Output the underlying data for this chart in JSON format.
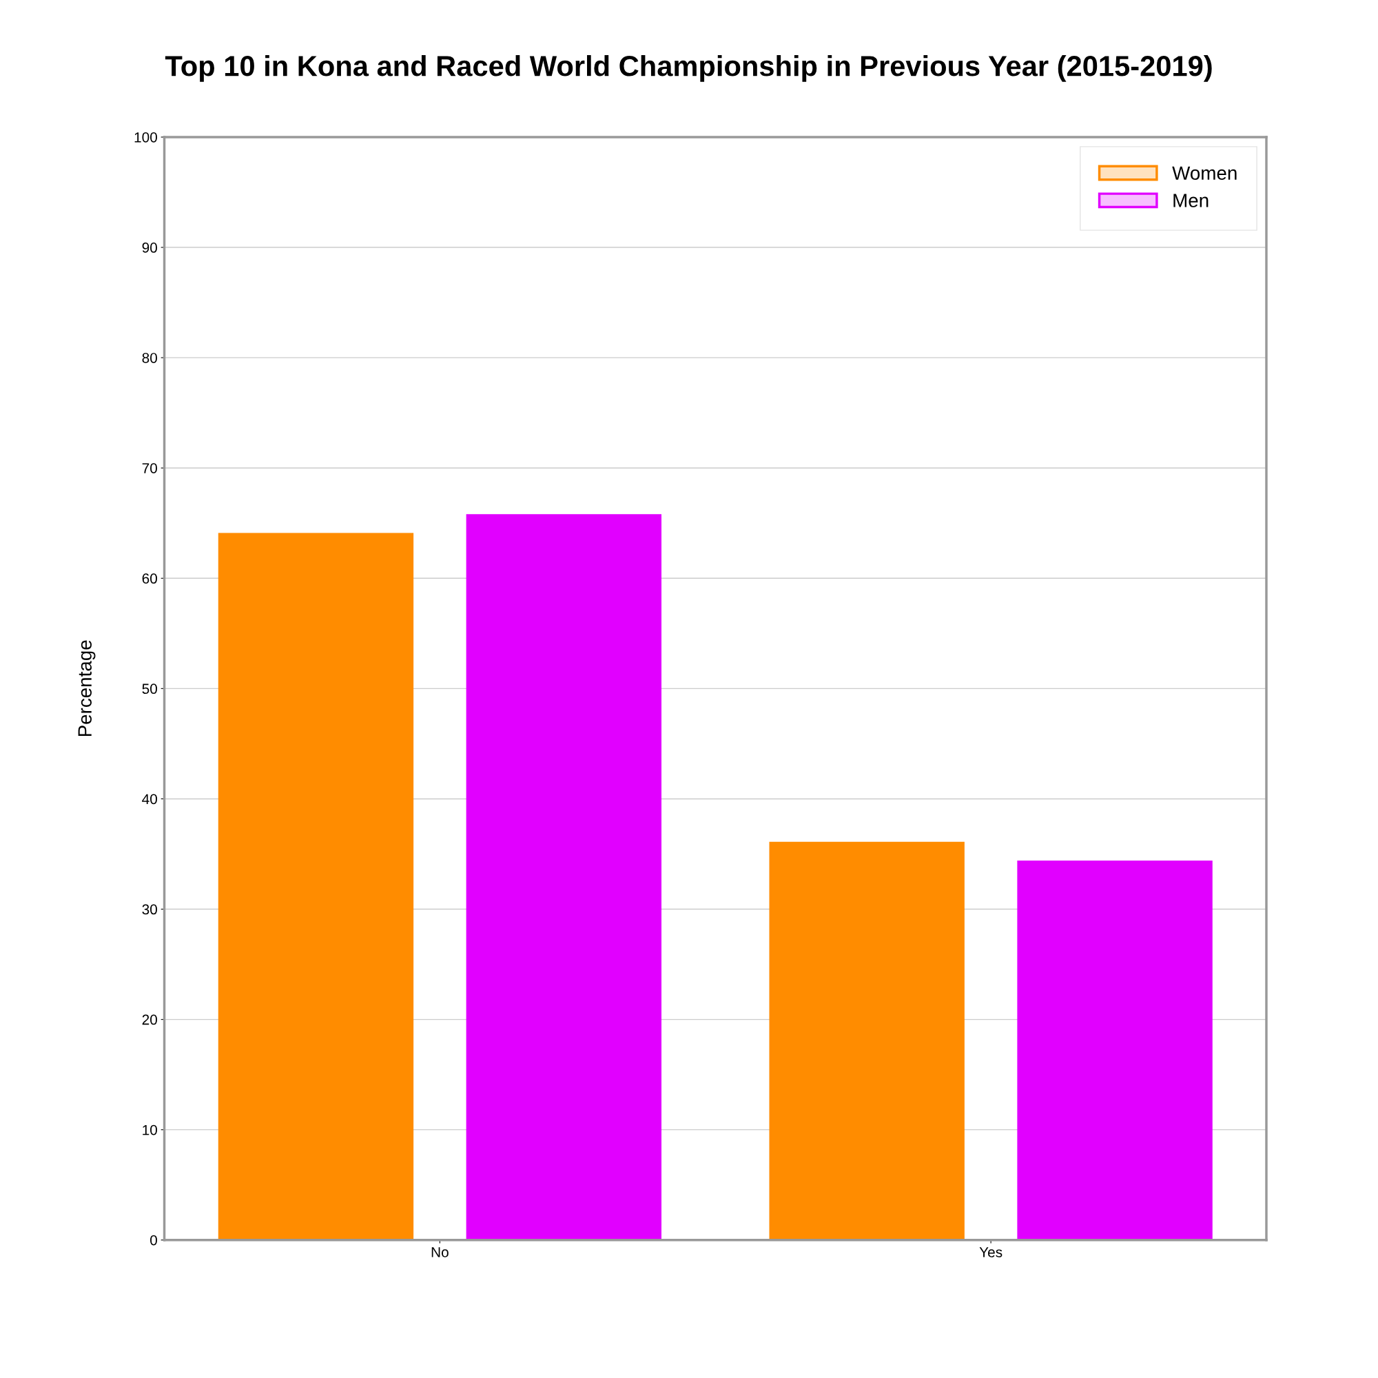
{
  "chart_data": {
    "type": "bar",
    "title": "Top 10 in Kona and Raced World Championship in Previous Year (2015-2019)",
    "ylabel": "Percentage",
    "categories": [
      "No",
      "Yes"
    ],
    "series": [
      {
        "name": "Women",
        "color": "#ff8c00",
        "values": [
          64.0,
          36.0
        ]
      },
      {
        "name": "Men",
        "color": "#e100ff",
        "values": [
          65.7,
          34.3
        ]
      }
    ],
    "ylim": [
      0,
      100
    ],
    "yticks": [
      0,
      10,
      20,
      30,
      40,
      50,
      60,
      70,
      80,
      90,
      100
    ],
    "grid": "y",
    "legend": "top right"
  }
}
